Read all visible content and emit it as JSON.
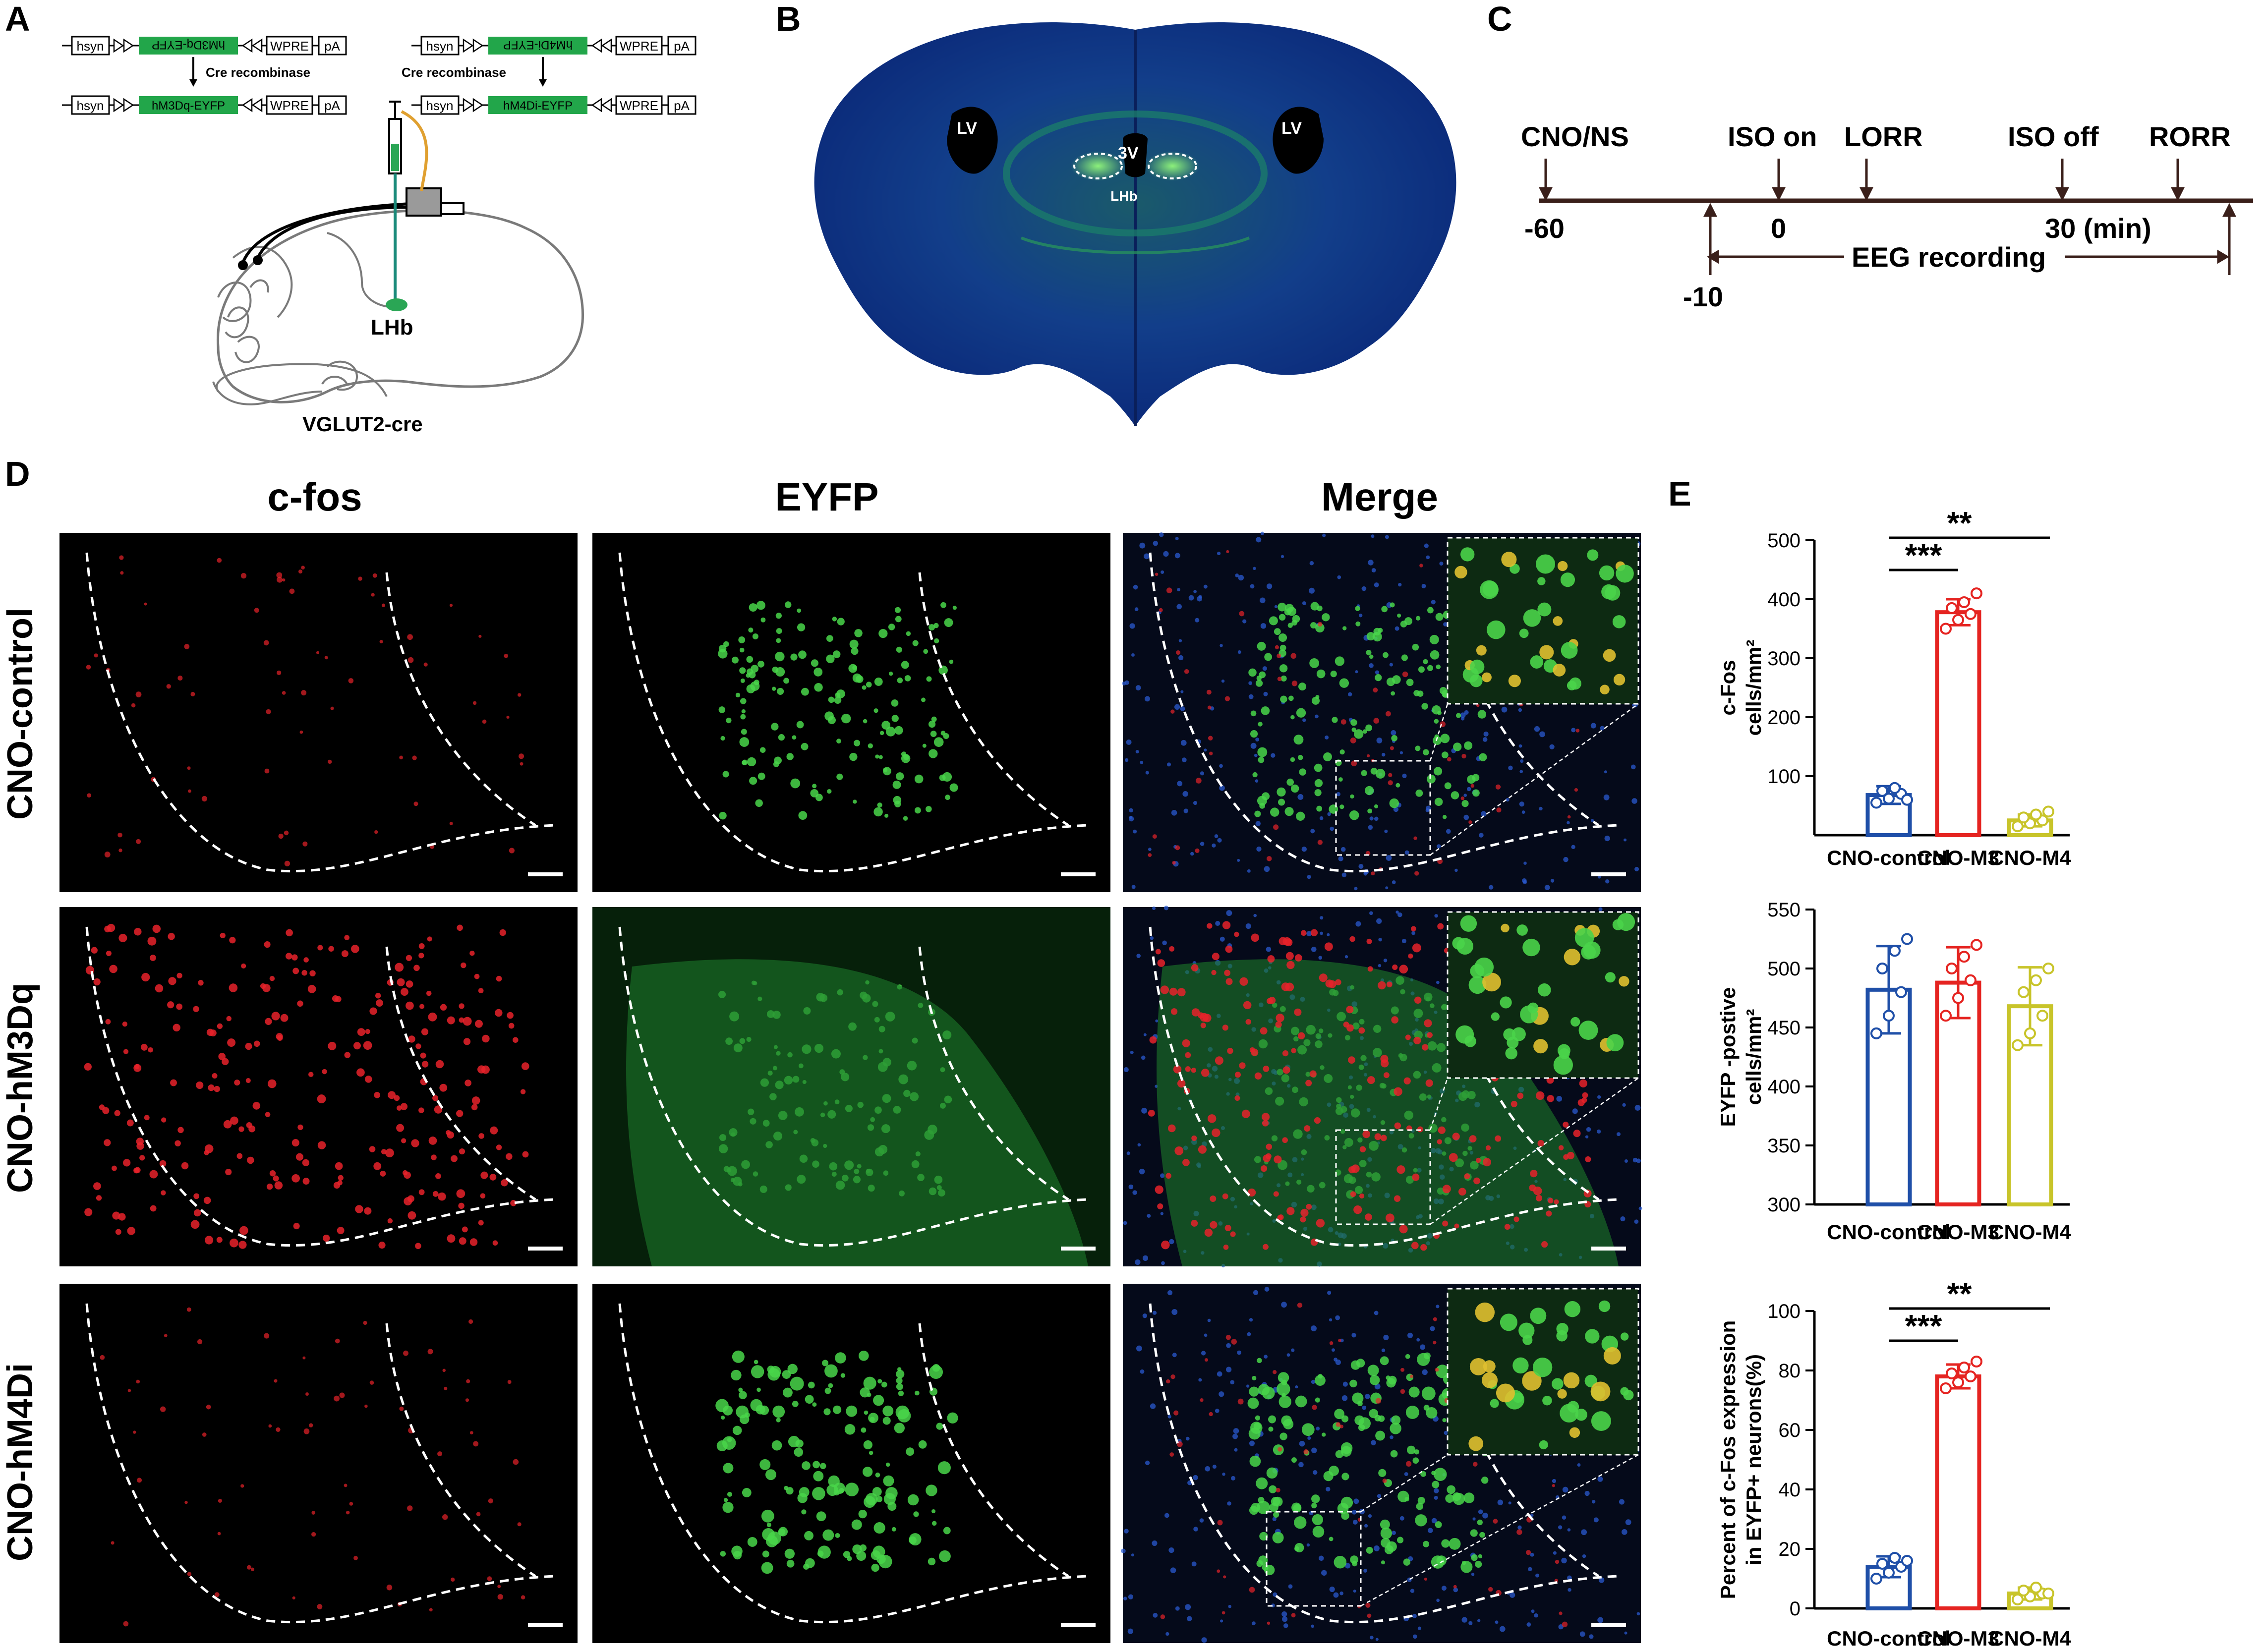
{
  "panels": {
    "A": {
      "label": "A",
      "top_left": [
        "hsyn",
        "hM3Dq-EYFP",
        "WPRE",
        "pA"
      ],
      "top_right": [
        "hsyn",
        "hM4Di-EYFP",
        "WPRE",
        "pA"
      ],
      "cre_label": "Cre recombinase",
      "bottom_left": [
        "hsyn",
        "hM3Dq-EYFP",
        "WPRE",
        "pA"
      ],
      "bottom_right": [
        "hsyn",
        "hM4Di-EYFP",
        "WPRE",
        "pA"
      ],
      "target": "LHb",
      "mouse": "VGLUT2-cre"
    },
    "B": {
      "label": "B",
      "lv_left": "LV",
      "lv_right": "LV",
      "v3": "3V",
      "lhb": "LHb"
    },
    "C": {
      "label": "C",
      "events": [
        "CNO/NS",
        "ISO on",
        "LORR",
        "ISO off",
        "RORR"
      ],
      "ticks": [
        "-60",
        "-10",
        "0",
        "30 (min)"
      ],
      "recording": "EEG recording"
    },
    "D": {
      "label": "D",
      "columns": [
        "c-fos",
        "EYFP",
        "Merge"
      ],
      "rows": [
        "CNO-control",
        "CNO-hM3Dq",
        "CNO-hM4Di"
      ]
    },
    "E": {
      "label": "E"
    }
  },
  "colors": {
    "control": "#1f4fa8",
    "m3": "#e52421",
    "m4": "#c8c42a",
    "timeline": "#3a1f1a",
    "green_construct": "#22a64a"
  },
  "chart_data": [
    {
      "type": "bar",
      "categories": [
        "CNO-control",
        "CNO-M3",
        "CNO-M4"
      ],
      "values": [
        68,
        378,
        25
      ],
      "errors": [
        15,
        22,
        10
      ],
      "points": [
        [
          55,
          62,
          70,
          75,
          80,
          60
        ],
        [
          350,
          365,
          375,
          385,
          395,
          410
        ],
        [
          15,
          20,
          25,
          30,
          35,
          40
        ]
      ],
      "ylabel": [
        "c-Fos",
        "cells/mm²"
      ],
      "yticks": [
        "100",
        "200",
        "300",
        "400",
        "500"
      ],
      "ylim": [
        0,
        500
      ],
      "significance": [
        {
          "pair": [
            0,
            1
          ],
          "label": "***"
        },
        {
          "pair": [
            0,
            2
          ],
          "label": "**"
        }
      ]
    },
    {
      "type": "bar",
      "categories": [
        "CNO-control",
        "CNO-M3",
        "CNO-M4"
      ],
      "values": [
        482,
        488,
        468
      ],
      "errors": [
        37,
        30,
        33
      ],
      "points": [
        [
          445,
          460,
          480,
          500,
          515,
          525
        ],
        [
          460,
          475,
          490,
          500,
          510,
          520
        ],
        [
          435,
          445,
          460,
          480,
          490,
          500
        ]
      ],
      "ylabel": [
        "EYFP -postive",
        "cells/mm²"
      ],
      "yticks": [
        "300",
        "350",
        "400",
        "450",
        "500",
        "550"
      ],
      "ylim": [
        300,
        550
      ],
      "significance": []
    },
    {
      "type": "bar",
      "categories": [
        "CNO-control",
        "CNO-M3",
        "CNO-M4"
      ],
      "values": [
        14,
        78,
        5
      ],
      "errors": [
        3.5,
        4,
        2
      ],
      "points": [
        [
          10,
          12,
          14,
          15,
          17,
          16
        ],
        [
          74,
          76,
          78,
          79,
          81,
          83
        ],
        [
          3,
          4,
          5,
          6,
          7,
          5
        ]
      ],
      "ylabel": [
        "Percent  of c-Fos expression",
        "in EYFP+ neurons(%)"
      ],
      "yticks": [
        "0",
        "20",
        "40",
        "60",
        "80",
        "100"
      ],
      "ylim": [
        0,
        100
      ],
      "significance": [
        {
          "pair": [
            0,
            1
          ],
          "label": "***"
        },
        {
          "pair": [
            0,
            2
          ],
          "label": "**"
        }
      ]
    }
  ]
}
